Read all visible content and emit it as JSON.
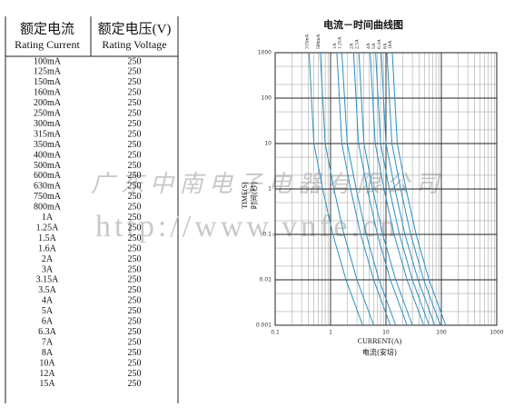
{
  "table": {
    "header": [
      [
        "额定电流",
        "Rating Current"
      ],
      [
        "额定电压(V)",
        "Rating Voltage"
      ]
    ],
    "rows": [
      [
        "100mA",
        "250"
      ],
      [
        "125mA",
        "250"
      ],
      [
        "150mA",
        "250"
      ],
      [
        "160mA",
        "250"
      ],
      [
        "200mA",
        "250"
      ],
      [
        "250mA",
        "250"
      ],
      [
        "300mA",
        "250"
      ],
      [
        "315mA",
        "250"
      ],
      [
        "350mA",
        "250"
      ],
      [
        "400mA",
        "250"
      ],
      [
        "500mA",
        "250"
      ],
      [
        "600mA",
        "250"
      ],
      [
        "630mA",
        "250"
      ],
      [
        "750mA",
        "250"
      ],
      [
        "800mA",
        "250"
      ],
      [
        "1A",
        "250"
      ],
      [
        "1.25A",
        "250"
      ],
      [
        "1.5A",
        "250"
      ],
      [
        "1.6A",
        "250"
      ],
      [
        "2A",
        "250"
      ],
      [
        "3A",
        "250"
      ],
      [
        "3.15A",
        "250"
      ],
      [
        "3.5A",
        "250"
      ],
      [
        "4A",
        "250"
      ],
      [
        "5A",
        "250"
      ],
      [
        "6A",
        "250"
      ],
      [
        "6.3A",
        "250"
      ],
      [
        "7A",
        "250"
      ],
      [
        "8A",
        "250"
      ],
      [
        "10A",
        "250"
      ],
      [
        "12A",
        "250"
      ],
      [
        "15A",
        "250"
      ]
    ]
  },
  "watermark": [
    "广 东 中 南 电 子 电 器 有 限 公 司",
    "http://www.vnfe.cn"
  ],
  "chart_data": {
    "type": "line",
    "title": "电流－时间曲线图",
    "x_label": [
      "CURRENT(A)",
      "电流(安培)"
    ],
    "y_label": [
      "TIME(S)",
      "时间(秒)"
    ],
    "log_x": true,
    "log_y": true,
    "grid": true,
    "xlim": [
      0.1,
      1000
    ],
    "ylim": [
      0.001,
      1000
    ],
    "xticks": [
      0.1,
      1,
      10,
      100,
      1000
    ],
    "yticks": [
      0.001,
      0.01,
      0.1,
      1,
      10,
      100,
      1000
    ],
    "xminorticks": [
      0.2,
      0.3,
      0.4,
      0.5,
      0.6,
      0.7,
      0.8,
      0.9,
      2,
      3,
      4,
      5,
      6,
      7,
      8,
      9,
      20,
      30,
      40,
      50,
      60,
      70,
      80,
      90,
      200,
      300,
      400,
      500,
      600,
      700,
      800,
      900
    ],
    "yminorticks": [
      0.002,
      0.005,
      0.02,
      0.05,
      0.2,
      0.5,
      2,
      5,
      20,
      50,
      200,
      500
    ],
    "series": [
      {
        "name": "315mA",
        "color": "#2a8fc0",
        "x": [
          0.41,
          0.5,
          0.72,
          1.1,
          1.9,
          3.8
        ],
        "values": [
          1000,
          10,
          1,
          0.1,
          0.01,
          0.001
        ]
      },
      {
        "name": "500mA",
        "color": "#2a8fc0",
        "x": [
          0.65,
          0.8,
          1.15,
          1.75,
          3,
          6
        ],
        "values": [
          1000,
          10,
          1,
          0.1,
          0.01,
          0.001
        ]
      },
      {
        "name": "1A",
        "color": "#2a8fc0",
        "x": [
          1.3,
          1.6,
          2.3,
          3.5,
          6,
          12
        ],
        "values": [
          1000,
          10,
          1,
          0.1,
          0.01,
          0.001
        ]
      },
      {
        "name": "1.25A",
        "color": "#2a8fc0",
        "x": [
          1.6,
          2,
          2.9,
          4.4,
          7.5,
          15
        ],
        "values": [
          1000,
          10,
          1,
          0.1,
          0.01,
          0.001
        ]
      },
      {
        "name": "2A",
        "color": "#2a8fc0",
        "x": [
          2.6,
          3.2,
          4.6,
          7,
          12,
          24
        ],
        "values": [
          1000,
          10,
          1,
          0.1,
          0.01,
          0.001
        ]
      },
      {
        "name": "2.5A",
        "color": "#2a8fc0",
        "x": [
          3.25,
          4,
          5.75,
          8.75,
          15,
          30
        ],
        "values": [
          1000,
          10,
          1,
          0.1,
          0.01,
          0.001
        ]
      },
      {
        "name": "4A",
        "color": "#2a8fc0",
        "x": [
          5.2,
          6.4,
          9.2,
          14,
          24,
          48
        ],
        "values": [
          1000,
          10,
          1,
          0.1,
          0.01,
          0.001
        ]
      },
      {
        "name": "5A",
        "color": "#2a8fc0",
        "x": [
          6.5,
          8,
          11.5,
          17.5,
          30,
          60
        ],
        "values": [
          1000,
          10,
          1,
          0.1,
          0.01,
          0.001
        ]
      },
      {
        "name": "6.3A",
        "color": "#2a8fc0",
        "x": [
          8.2,
          10,
          14.5,
          22,
          38,
          76
        ],
        "values": [
          1000,
          10,
          1,
          0.1,
          0.01,
          0.001
        ]
      },
      {
        "name": "8A",
        "color": "#2a8fc0",
        "x": [
          10.4,
          12.8,
          18.4,
          28,
          48,
          96
        ],
        "values": [
          1000,
          10,
          1,
          0.1,
          0.01,
          0.001
        ]
      },
      {
        "name": "10A",
        "color": "#2a8fc0",
        "x": [
          13,
          16,
          23,
          35,
          60,
          120
        ],
        "values": [
          1000,
          10,
          1,
          0.1,
          0.01,
          0.001
        ]
      }
    ]
  }
}
